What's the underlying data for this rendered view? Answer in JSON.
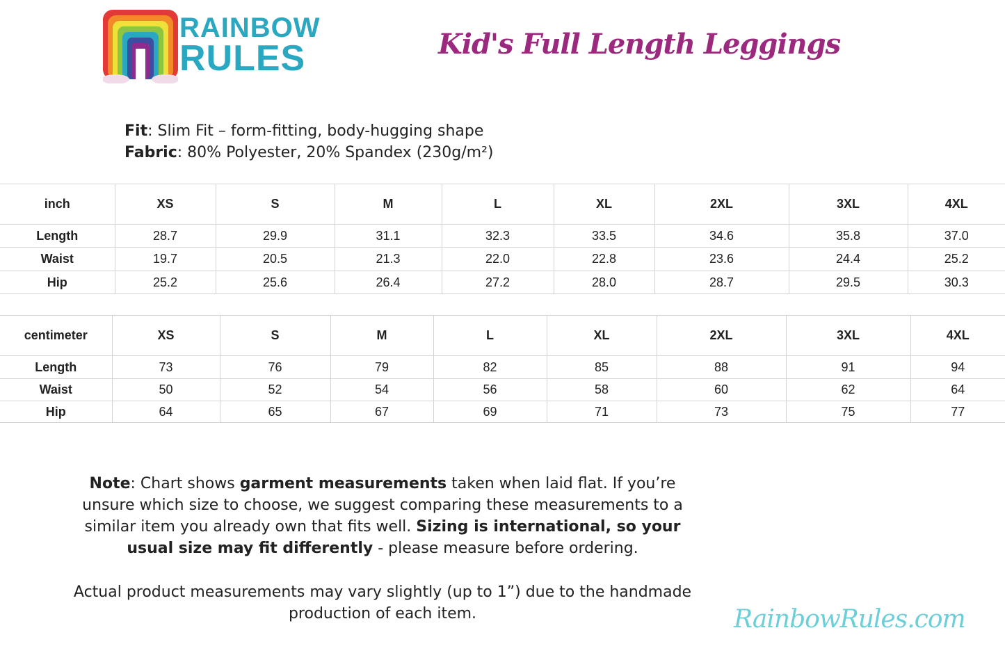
{
  "brand": {
    "logo_line1": "RAINBOW",
    "logo_line2": "RULES",
    "website": "RainbowRules.com"
  },
  "title": "Kid's Full Length Leggings",
  "specs": {
    "fit_label": "Fit",
    "fit_value": ": Slim Fit – form-fitting, body-hugging shape",
    "fabric_label": "Fabric",
    "fabric_value": ": 80% Polyester, 20% Spandex (230g/m²)"
  },
  "inch_table": {
    "unit": "inch",
    "sizes": [
      "XS",
      "S",
      "M",
      "L",
      "XL",
      "2XL",
      "3XL",
      "4XL"
    ],
    "rows": [
      {
        "label": "Length",
        "values": [
          "28.7",
          "29.9",
          "31.1",
          "32.3",
          "33.5",
          "34.6",
          "35.8",
          "37.0"
        ]
      },
      {
        "label": "Waist",
        "values": [
          "19.7",
          "20.5",
          "21.3",
          "22.0",
          "22.8",
          "23.6",
          "24.4",
          "25.2"
        ]
      },
      {
        "label": "Hip",
        "values": [
          "25.2",
          "25.6",
          "26.4",
          "27.2",
          "28.0",
          "28.7",
          "29.5",
          "30.3"
        ]
      }
    ]
  },
  "cm_table": {
    "unit": "centimeter",
    "sizes": [
      "XS",
      "S",
      "M",
      "L",
      "XL",
      "2XL",
      "3XL",
      "4XL"
    ],
    "rows": [
      {
        "label": "Length",
        "values": [
          "73",
          "76",
          "79",
          "82",
          "85",
          "88",
          "91",
          "94"
        ]
      },
      {
        "label": "Waist",
        "values": [
          "50",
          "52",
          "54",
          "56",
          "58",
          "60",
          "62",
          "64"
        ]
      },
      {
        "label": "Hip",
        "values": [
          "64",
          "65",
          "67",
          "69",
          "71",
          "73",
          "75",
          "77"
        ]
      }
    ]
  },
  "note": {
    "p1": [
      "Note",
      ": Chart shows ",
      "garment measurements",
      " taken when laid flat. If you’re unsure which size to choose, we suggest comparing these measurements to a similar item you already own that fits well. ",
      "Sizing is international, so your usual size may fit differently",
      " - please measure before ordering."
    ],
    "p2": "Actual product measurements may vary slightly (up to 1”) due to the handmade production of each item."
  },
  "colors": {
    "title": "#9b2a7f",
    "logo": "#2aa7c1",
    "website": "#6ccfd8"
  }
}
